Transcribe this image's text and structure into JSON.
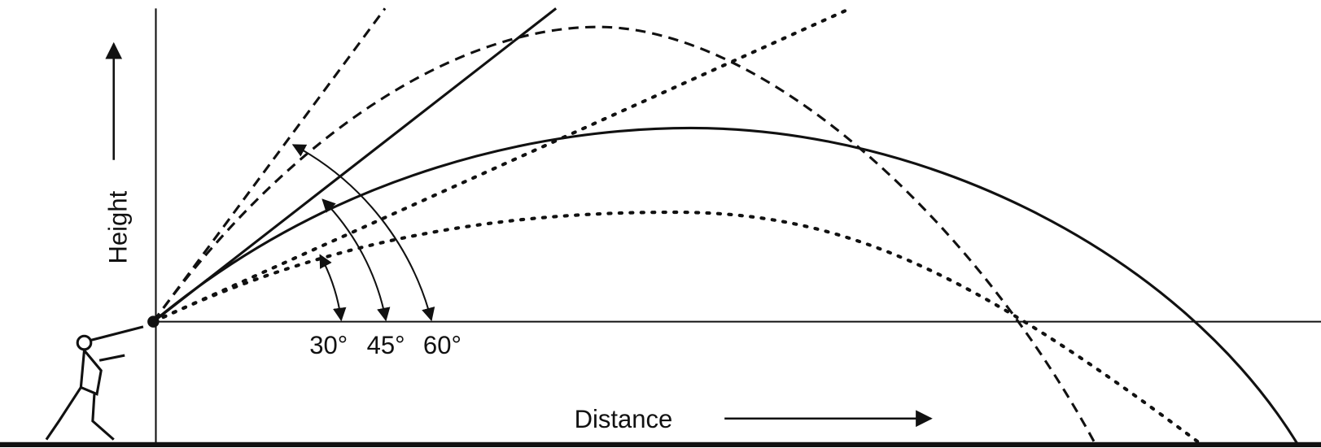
{
  "axes": {
    "height": "Height",
    "distance": "Distance"
  },
  "angles": [
    "30°",
    "45°",
    "60°"
  ]
}
